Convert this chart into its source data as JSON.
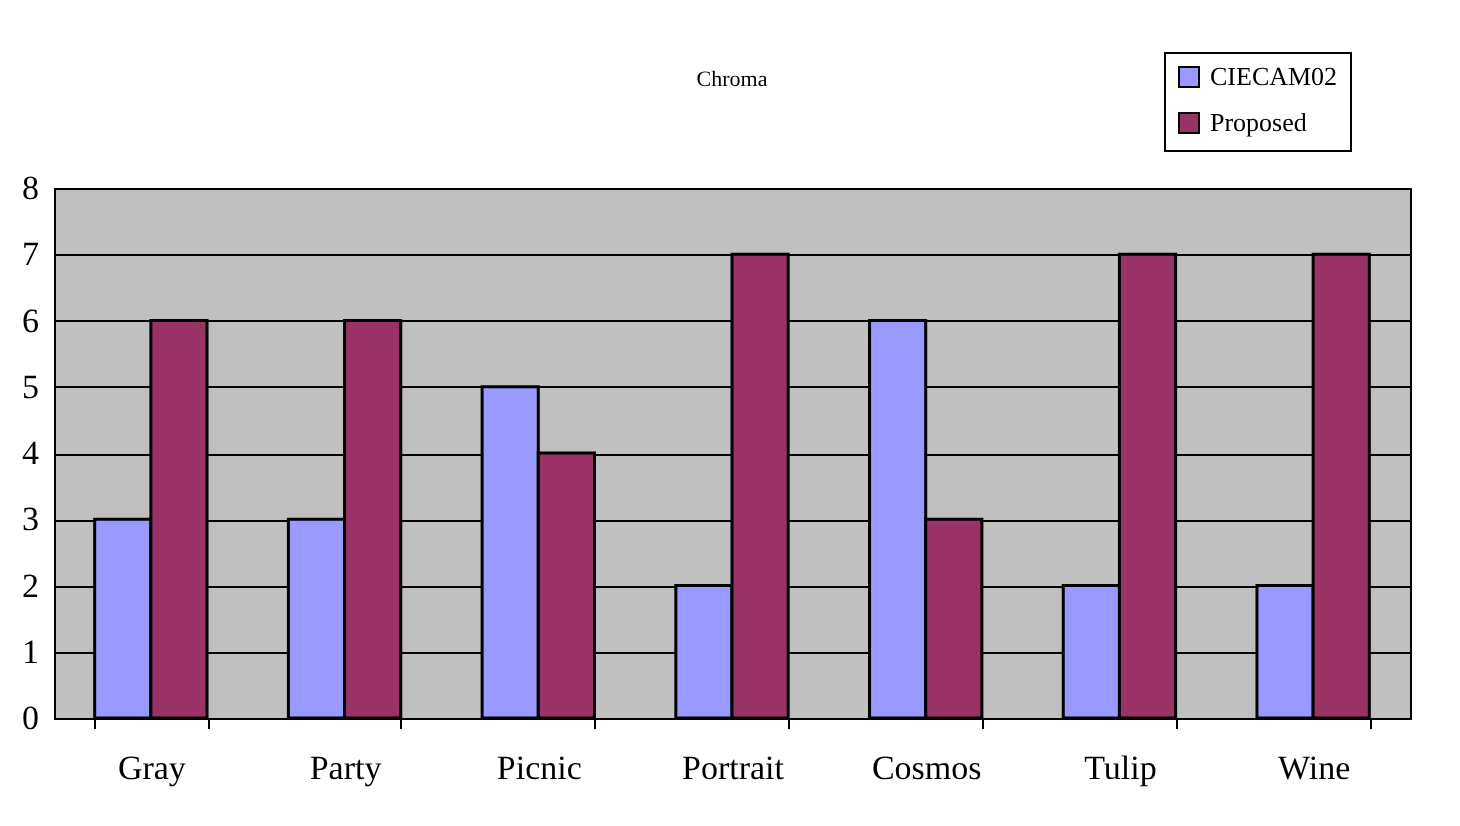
{
  "chart_data": {
    "type": "bar",
    "title": "Chroma",
    "categories": [
      "Gray",
      "Party",
      "Picnic",
      "Portrait",
      "Cosmos",
      "Tulip",
      "Wine"
    ],
    "series": [
      {
        "name": "CIECAM02",
        "color": "#9999ff",
        "values": [
          3,
          3,
          5,
          2,
          6,
          2,
          2
        ]
      },
      {
        "name": "Proposed",
        "color": "#993366",
        "values": [
          6,
          6,
          4,
          7,
          3,
          7,
          7
        ]
      }
    ],
    "ylim": [
      0,
      8
    ],
    "yticks": [
      0,
      1,
      2,
      3,
      4,
      5,
      6,
      7,
      8
    ],
    "grid": "y",
    "legend": "top right"
  }
}
